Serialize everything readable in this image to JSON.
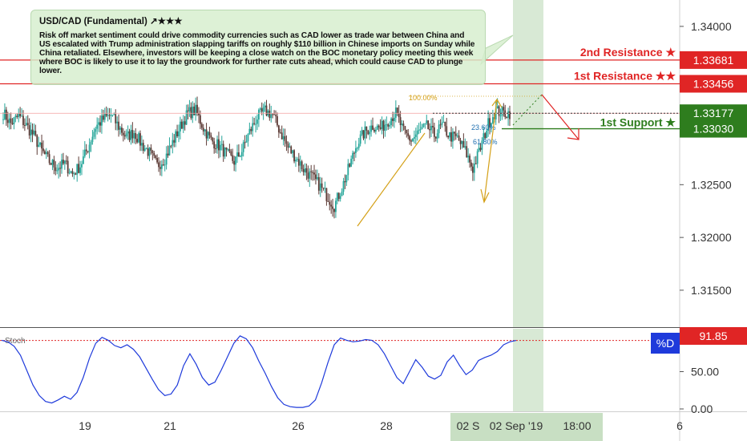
{
  "note": {
    "title": "USD/CAD (Fundamental) ↗★★★",
    "body": "Risk off market sentiment could drive commodity currencies such as CAD lower as trade war between China and US escalated with Trump administration slapping tariffs on roughly $110 billion in Chinese imports on Sunday while China retaliated. Elsewhere, investors will be keeping a close watch on the BOC monetary policy meeting this week where BOC is likely to use it to lay the groundwork for further rate cuts ahead, which could cause CAD to plunge lower."
  },
  "colors": {
    "up": "#26a69a",
    "down": "#5d3b36",
    "resistance": "#e02525",
    "support": "#2e7d1e",
    "fib": "#d4a017",
    "stoch": "#1e3adb",
    "stoch_level": "#e02525",
    "highlight": "#c8dfc3"
  },
  "chart_data": [
    {
      "type": "candlestick",
      "symbol": "USD/CAD",
      "ylim": [
        1.3115,
        1.3425
      ],
      "y_ticks": [
        "1.31500",
        "1.32000",
        "1.32500",
        "1.34000"
      ],
      "x_ticks": [
        "19",
        "21",
        "26",
        "28",
        "6"
      ],
      "x_cursor_labels": [
        "02 S",
        "02 Sep '19",
        "18:00"
      ],
      "levels": [
        {
          "name": "2nd Resistance ★",
          "value": 1.33681,
          "price_label": "1.33681",
          "kind": "resistance"
        },
        {
          "name": "1st Resistance ★★",
          "value": 1.33456,
          "price_label": "1.33456",
          "kind": "resistance"
        },
        {
          "name": "current",
          "value": 1.33177,
          "price_label": "1.33177",
          "kind": "current"
        },
        {
          "name": "1st Support ★",
          "value": 1.3303,
          "price_label": "1.33030",
          "kind": "support"
        }
      ],
      "fib_labels": [
        "100.00%",
        "23.60%",
        "61.80%"
      ],
      "trend": [
        1.3318,
        1.3308,
        1.3315,
        1.3306,
        1.3296,
        1.3282,
        1.3272,
        1.3266,
        1.327,
        1.326,
        1.3268,
        1.3285,
        1.3305,
        1.3312,
        1.3316,
        1.3305,
        1.3295,
        1.33,
        1.3288,
        1.328,
        1.3268,
        1.3275,
        1.329,
        1.3305,
        1.3318,
        1.332,
        1.3304,
        1.3292,
        1.3287,
        1.3279,
        1.3272,
        1.3282,
        1.33,
        1.3314,
        1.332,
        1.3316,
        1.33,
        1.3285,
        1.3276,
        1.3265,
        1.3258,
        1.325,
        1.324,
        1.323,
        1.3247,
        1.3268,
        1.329,
        1.33,
        1.3306,
        1.3303,
        1.3311,
        1.3318,
        1.33,
        1.3292,
        1.33,
        1.3305,
        1.3297,
        1.3306,
        1.3296,
        1.3294,
        1.3282,
        1.3265,
        1.3285,
        1.3308,
        1.332,
        1.3318
      ]
    },
    {
      "type": "line",
      "title": "Stoch",
      "series": [
        {
          "name": "%D",
          "last_label": "91.85"
        }
      ],
      "ylim": [
        0,
        100
      ],
      "y_ticks": [
        "50.00",
        "0.00"
      ],
      "level": 91.85,
      "values": [
        92,
        90,
        84,
        72,
        52,
        32,
        18,
        10,
        8,
        12,
        17,
        13,
        22,
        42,
        68,
        88,
        96,
        92,
        85,
        82,
        86,
        80,
        70,
        55,
        40,
        26,
        18,
        20,
        32,
        58,
        74,
        60,
        42,
        32,
        36,
        52,
        70,
        88,
        98,
        94,
        82,
        64,
        48,
        30,
        15,
        6,
        3,
        2,
        2,
        4,
        12,
        35,
        62,
        86,
        95,
        92,
        90,
        91,
        93,
        92,
        86,
        74,
        58,
        42,
        34,
        50,
        66,
        56,
        44,
        40,
        45,
        63,
        72,
        58,
        46,
        52,
        65,
        69,
        72,
        77,
        86,
        90,
        91.85
      ]
    }
  ]
}
